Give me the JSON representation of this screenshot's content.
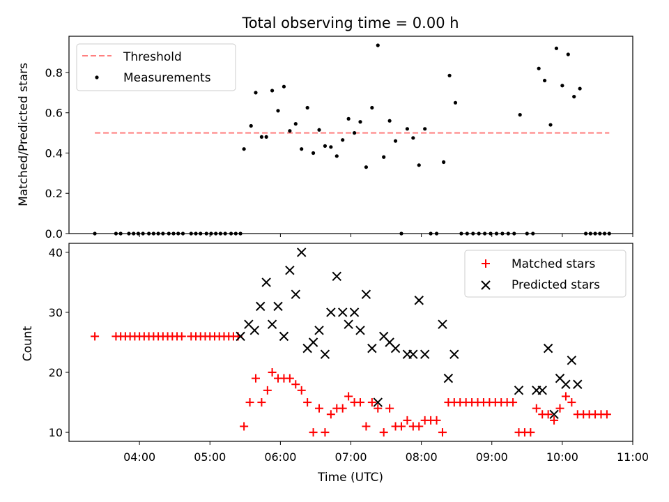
{
  "figure_title": "Total observing time = 0.00 h",
  "xlabel": "Time (UTC)",
  "x_ticks": [
    "04:00",
    "05:00",
    "06:00",
    "07:00",
    "08:00",
    "09:00",
    "10:00",
    "11:00"
  ],
  "chart_data": [
    {
      "type": "scatter",
      "ylabel": "Matched/Predicted stars",
      "ylim": [
        0,
        0.98
      ],
      "xlim": [
        "03:00",
        "11:00"
      ],
      "y_ticks": [
        "0.0",
        "0.2",
        "0.4",
        "0.6",
        "0.8"
      ],
      "legend_placement": "upper-left",
      "threshold": {
        "name": "Threshold",
        "value": 0.5,
        "x_range": [
          "03:22",
          "10:40"
        ],
        "color": "#ff7f7f",
        "style": "dashed"
      },
      "series": [
        {
          "name": "Measurements",
          "color": "#000000",
          "marker": "dot",
          "points": [
            [
              "03:22",
              0.0
            ],
            [
              "03:40",
              0.0
            ],
            [
              "03:44",
              0.0
            ],
            [
              "03:51",
              0.0
            ],
            [
              "03:55",
              0.0
            ],
            [
              "03:59",
              0.0
            ],
            [
              "04:03",
              0.0
            ],
            [
              "04:08",
              0.0
            ],
            [
              "04:12",
              0.0
            ],
            [
              "04:16",
              0.0
            ],
            [
              "04:20",
              0.0
            ],
            [
              "04:25",
              0.0
            ],
            [
              "04:29",
              0.0
            ],
            [
              "04:33",
              0.0
            ],
            [
              "04:37",
              0.0
            ],
            [
              "04:44",
              0.0
            ],
            [
              "04:48",
              0.0
            ],
            [
              "04:52",
              0.0
            ],
            [
              "04:57",
              0.0
            ],
            [
              "05:01",
              0.0
            ],
            [
              "05:05",
              0.0
            ],
            [
              "05:09",
              0.0
            ],
            [
              "05:13",
              0.0
            ],
            [
              "05:18",
              0.0
            ],
            [
              "05:22",
              0.0
            ],
            [
              "05:26",
              0.0
            ],
            [
              "05:29",
              0.42
            ],
            [
              "05:35",
              0.535
            ],
            [
              "05:39",
              0.7
            ],
            [
              "05:44",
              0.48
            ],
            [
              "05:48",
              0.48
            ],
            [
              "05:53",
              0.71
            ],
            [
              "05:58",
              0.61
            ],
            [
              "06:03",
              0.73
            ],
            [
              "06:08",
              0.51
            ],
            [
              "06:13",
              0.545
            ],
            [
              "06:18",
              0.42
            ],
            [
              "06:23",
              0.625
            ],
            [
              "06:28",
              0.4
            ],
            [
              "06:33",
              0.515
            ],
            [
              "06:38",
              0.435
            ],
            [
              "06:43",
              0.43
            ],
            [
              "06:48",
              0.385
            ],
            [
              "06:53",
              0.465
            ],
            [
              "06:58",
              0.57
            ],
            [
              "07:03",
              0.5
            ],
            [
              "07:08",
              0.555
            ],
            [
              "07:13",
              0.33
            ],
            [
              "07:18",
              0.625
            ],
            [
              "07:23",
              0.935
            ],
            [
              "07:28",
              0.38
            ],
            [
              "07:33",
              0.56
            ],
            [
              "07:38",
              0.46
            ],
            [
              "07:43",
              0.0
            ],
            [
              "07:48",
              0.52
            ],
            [
              "07:53",
              0.475
            ],
            [
              "07:58",
              0.34
            ],
            [
              "08:03",
              0.52
            ],
            [
              "08:08",
              0.0
            ],
            [
              "08:13",
              0.0
            ],
            [
              "08:19",
              0.355
            ],
            [
              "08:24",
              0.785
            ],
            [
              "08:29",
              0.65
            ],
            [
              "08:34",
              0.0
            ],
            [
              "08:39",
              0.0
            ],
            [
              "08:44",
              0.0
            ],
            [
              "08:49",
              0.0
            ],
            [
              "08:54",
              0.0
            ],
            [
              "08:59",
              0.0
            ],
            [
              "09:04",
              0.0
            ],
            [
              "09:09",
              0.0
            ],
            [
              "09:14",
              0.0
            ],
            [
              "09:19",
              0.0
            ],
            [
              "09:24",
              0.59
            ],
            [
              "09:30",
              0.0
            ],
            [
              "09:35",
              0.0
            ],
            [
              "09:40",
              0.82
            ],
            [
              "09:45",
              0.76
            ],
            [
              "09:50",
              0.54
            ],
            [
              "09:55",
              0.92
            ],
            [
              "10:00",
              0.735
            ],
            [
              "10:05",
              0.89
            ],
            [
              "10:10",
              0.68
            ],
            [
              "10:15",
              0.72
            ],
            [
              "10:20",
              0.0
            ],
            [
              "10:24",
              0.0
            ],
            [
              "10:28",
              0.0
            ],
            [
              "10:32",
              0.0
            ],
            [
              "10:36",
              0.0
            ],
            [
              "10:40",
              0.0
            ]
          ]
        }
      ]
    },
    {
      "type": "scatter",
      "ylabel": "Count",
      "ylim": [
        8.5,
        41.5
      ],
      "xlim": [
        "03:00",
        "11:00"
      ],
      "y_ticks": [
        "10",
        "20",
        "30",
        "40"
      ],
      "legend_placement": "upper-right",
      "series": [
        {
          "name": "Matched stars",
          "color": "#ff0000",
          "marker": "plus",
          "points": [
            [
              "03:22",
              26
            ],
            [
              "03:40",
              26
            ],
            [
              "03:44",
              26
            ],
            [
              "03:48",
              26
            ],
            [
              "03:52",
              26
            ],
            [
              "03:56",
              26
            ],
            [
              "04:00",
              26
            ],
            [
              "04:04",
              26
            ],
            [
              "04:08",
              26
            ],
            [
              "04:12",
              26
            ],
            [
              "04:16",
              26
            ],
            [
              "04:20",
              26
            ],
            [
              "04:24",
              26
            ],
            [
              "04:28",
              26
            ],
            [
              "04:32",
              26
            ],
            [
              "04:36",
              26
            ],
            [
              "04:44",
              26
            ],
            [
              "04:48",
              26
            ],
            [
              "04:52",
              26
            ],
            [
              "04:56",
              26
            ],
            [
              "05:00",
              26
            ],
            [
              "05:04",
              26
            ],
            [
              "05:08",
              26
            ],
            [
              "05:12",
              26
            ],
            [
              "05:16",
              26
            ],
            [
              "05:20",
              26
            ],
            [
              "05:24",
              26
            ],
            [
              "05:29",
              11
            ],
            [
              "05:34",
              15
            ],
            [
              "05:39",
              19
            ],
            [
              "05:44",
              15
            ],
            [
              "05:49",
              17
            ],
            [
              "05:53",
              20
            ],
            [
              "05:58",
              19
            ],
            [
              "06:03",
              19
            ],
            [
              "06:08",
              19
            ],
            [
              "06:13",
              18
            ],
            [
              "06:18",
              17
            ],
            [
              "06:23",
              15
            ],
            [
              "06:28",
              10
            ],
            [
              "06:33",
              14
            ],
            [
              "06:38",
              10
            ],
            [
              "06:43",
              13
            ],
            [
              "06:48",
              14
            ],
            [
              "06:53",
              14
            ],
            [
              "06:58",
              16
            ],
            [
              "07:03",
              15
            ],
            [
              "07:08",
              15
            ],
            [
              "07:13",
              11
            ],
            [
              "07:18",
              15
            ],
            [
              "07:23",
              14
            ],
            [
              "07:28",
              10
            ],
            [
              "07:33",
              14
            ],
            [
              "07:38",
              11
            ],
            [
              "07:43",
              11
            ],
            [
              "07:48",
              12
            ],
            [
              "07:53",
              11
            ],
            [
              "07:58",
              11
            ],
            [
              "08:03",
              12
            ],
            [
              "08:08",
              12
            ],
            [
              "08:13",
              12
            ],
            [
              "08:18",
              10
            ],
            [
              "08:23",
              15
            ],
            [
              "08:28",
              15
            ],
            [
              "08:33",
              15
            ],
            [
              "08:38",
              15
            ],
            [
              "08:43",
              15
            ],
            [
              "08:48",
              15
            ],
            [
              "08:53",
              15
            ],
            [
              "08:58",
              15
            ],
            [
              "09:03",
              15
            ],
            [
              "09:08",
              15
            ],
            [
              "09:13",
              15
            ],
            [
              "09:18",
              15
            ],
            [
              "09:23",
              10
            ],
            [
              "09:28",
              10
            ],
            [
              "09:33",
              10
            ],
            [
              "09:38",
              14
            ],
            [
              "09:43",
              13
            ],
            [
              "09:48",
              13
            ],
            [
              "09:53",
              12
            ],
            [
              "09:58",
              14
            ],
            [
              "10:03",
              16
            ],
            [
              "10:08",
              15
            ],
            [
              "10:13",
              13
            ],
            [
              "10:18",
              13
            ],
            [
              "10:23",
              13
            ],
            [
              "10:28",
              13
            ],
            [
              "10:33",
              13
            ],
            [
              "10:38",
              13
            ]
          ]
        },
        {
          "name": "Predicted stars",
          "color": "#000000",
          "marker": "x",
          "points": [
            [
              "05:26",
              26
            ],
            [
              "05:33",
              28
            ],
            [
              "05:38",
              27
            ],
            [
              "05:43",
              31
            ],
            [
              "05:48",
              35
            ],
            [
              "05:53",
              28
            ],
            [
              "05:58",
              31
            ],
            [
              "06:03",
              26
            ],
            [
              "06:08",
              37
            ],
            [
              "06:13",
              33
            ],
            [
              "06:18",
              40
            ],
            [
              "06:23",
              24
            ],
            [
              "06:28",
              25
            ],
            [
              "06:33",
              27
            ],
            [
              "06:38",
              23
            ],
            [
              "06:43",
              30
            ],
            [
              "06:48",
              36
            ],
            [
              "06:53",
              30
            ],
            [
              "06:58",
              28
            ],
            [
              "07:03",
              30
            ],
            [
              "07:08",
              27
            ],
            [
              "07:13",
              33
            ],
            [
              "07:18",
              24
            ],
            [
              "07:23",
              15
            ],
            [
              "07:28",
              26
            ],
            [
              "07:33",
              25
            ],
            [
              "07:38",
              24
            ],
            [
              "07:48",
              23
            ],
            [
              "07:53",
              23
            ],
            [
              "07:58",
              32
            ],
            [
              "08:03",
              23
            ],
            [
              "08:18",
              28
            ],
            [
              "08:23",
              19
            ],
            [
              "08:28",
              23
            ],
            [
              "09:23",
              17
            ],
            [
              "09:38",
              17
            ],
            [
              "09:43",
              17
            ],
            [
              "09:48",
              24
            ],
            [
              "09:53",
              13
            ],
            [
              "09:58",
              19
            ],
            [
              "10:03",
              18
            ],
            [
              "10:08",
              22
            ],
            [
              "10:13",
              18
            ]
          ]
        }
      ]
    }
  ]
}
